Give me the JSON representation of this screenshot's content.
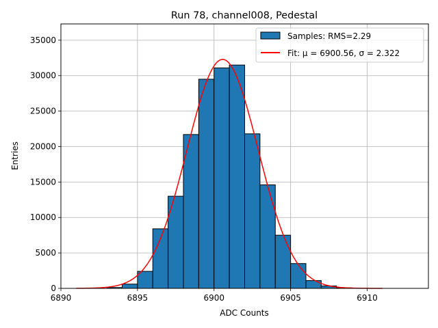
{
  "chart_data": {
    "type": "bar",
    "title": "Run 78, channel008, Pedestal",
    "xlabel": "ADC Counts",
    "ylabel": "Entries",
    "xlim": [
      6890,
      6914
    ],
    "ylim": [
      0,
      37300
    ],
    "xticks": [
      6890,
      6895,
      6900,
      6905,
      6910
    ],
    "yticks": [
      0,
      5000,
      10000,
      15000,
      20000,
      25000,
      30000,
      35000
    ],
    "grid": true,
    "legend_position": "top-right",
    "histogram": {
      "name": "Samples: RMS=2.29",
      "color": "#1f77b4",
      "bin_width": 1,
      "bin_edges_start": 6893,
      "values": [
        120,
        600,
        2400,
        8400,
        13000,
        21700,
        29500,
        31100,
        31500,
        21800,
        14600,
        7500,
        3500,
        1100,
        350,
        80
      ]
    },
    "fit": {
      "name": "Fit: μ = 6900.56, σ = 2.322",
      "color": "#ff0000",
      "mu": 6900.56,
      "sigma": 2.322,
      "amplitude": 32300,
      "x_range": [
        6891,
        6911
      ]
    }
  }
}
